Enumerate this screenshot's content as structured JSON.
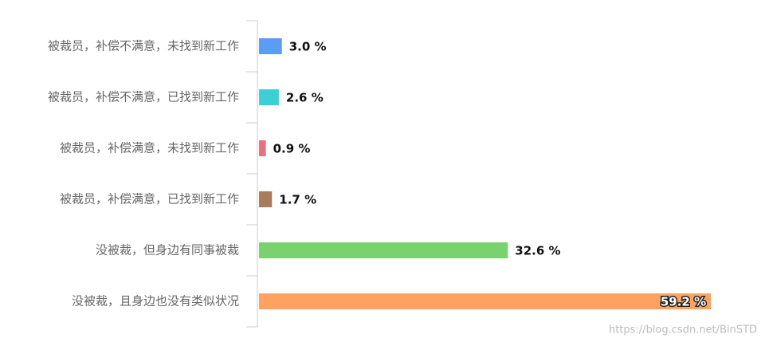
{
  "chart_data": {
    "type": "bar",
    "orientation": "horizontal",
    "categories": [
      "被裁员，补偿不满意，未找到新工作",
      "被裁员，补偿不满意，已找到新工作",
      "被裁员，补偿满意，未找到新工作",
      "被裁员，补偿满意，已找到新工作",
      "没被裁，但身边有同事被裁",
      "没被裁，且身边也没有类似状况"
    ],
    "values": [
      3.0,
      2.6,
      0.9,
      1.7,
      32.6,
      59.2
    ],
    "value_labels": [
      "3.0 %",
      "2.6 %",
      "0.9 %",
      "1.7 %",
      "32.6 %",
      "59.2 %"
    ],
    "colors": [
      "#5b9cf5",
      "#3ecfd6",
      "#e8707f",
      "#a97c5b",
      "#7ad170",
      "#fda261"
    ]
  },
  "watermark": "https://blog.csdn.net/BinSTD"
}
